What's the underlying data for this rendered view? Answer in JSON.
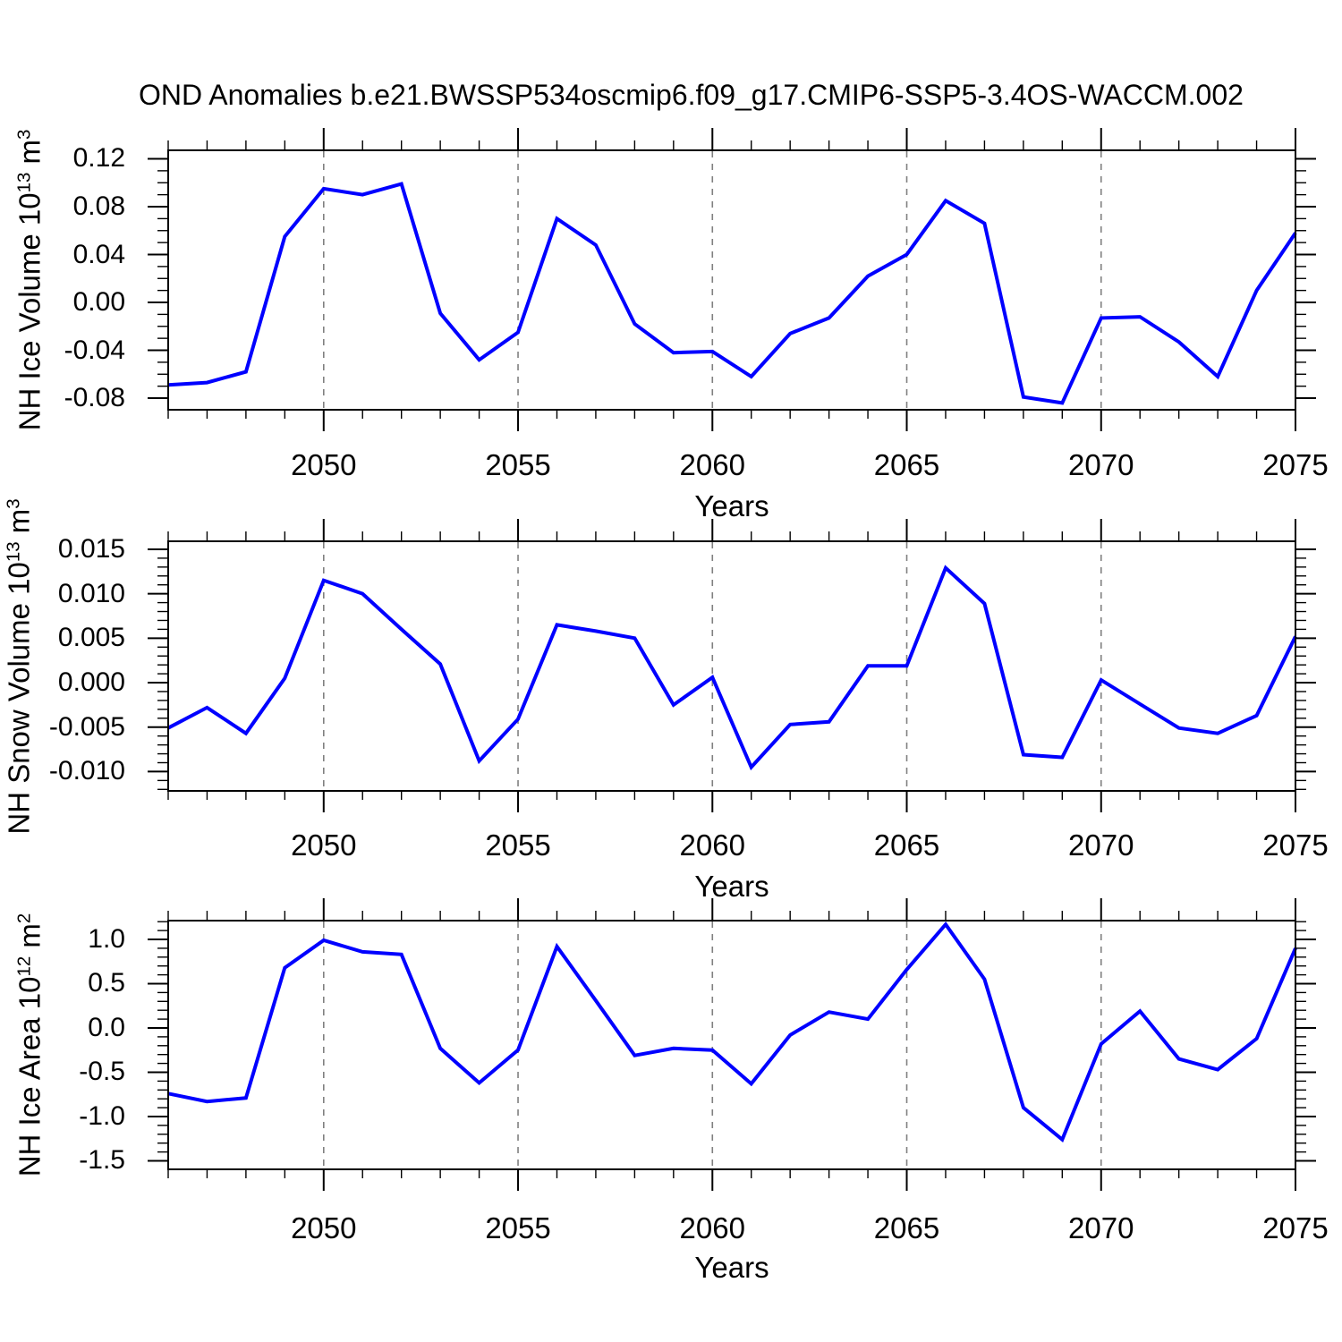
{
  "title": "OND Anomalies b.e21.BWSSP534oscmip6.f09_g17.CMIP6-SSP5-3.4OS-WACCM.002",
  "colors": {
    "line": "#0000ff",
    "axis": "#000000",
    "grid": "#808080",
    "text": "#000000",
    "background": "#ffffff"
  },
  "chart_data": [
    {
      "type": "line",
      "name": "nh-ice-volume",
      "ylabel_text": "NH Ice Volume 10^13 m^3",
      "ylabel_parts": [
        {
          "t": "NH Ice Volume 10"
        },
        {
          "t": "13",
          "sup": true
        },
        {
          "t": " m"
        },
        {
          "t": "3",
          "sup": true
        }
      ],
      "xlabel": "Years",
      "x": [
        2046,
        2047,
        2048,
        2049,
        2050,
        2051,
        2052,
        2053,
        2054,
        2055,
        2056,
        2057,
        2058,
        2059,
        2060,
        2061,
        2062,
        2063,
        2064,
        2065,
        2066,
        2067,
        2068,
        2069,
        2070,
        2071,
        2072,
        2073,
        2074,
        2075
      ],
      "values": [
        -0.069,
        -0.067,
        -0.058,
        0.055,
        0.095,
        0.09,
        0.099,
        -0.009,
        -0.048,
        -0.025,
        0.07,
        0.048,
        -0.018,
        -0.042,
        -0.041,
        -0.062,
        -0.026,
        -0.013,
        0.022,
        0.04,
        0.085,
        0.066,
        -0.079,
        -0.084,
        -0.013,
        -0.012,
        -0.033,
        -0.062,
        0.01,
        0.058
      ],
      "xlim": [
        2046,
        2075
      ],
      "ylim": [
        -0.0897,
        0.1271
      ],
      "xticks": [
        {
          "v": 2050,
          "label": "2050"
        },
        {
          "v": 2055,
          "label": "2055"
        },
        {
          "v": 2060,
          "label": "2060"
        },
        {
          "v": 2065,
          "label": "2065"
        },
        {
          "v": 2070,
          "label": "2070"
        },
        {
          "v": 2075,
          "label": "2075"
        }
      ],
      "yticks": [
        {
          "v": 0.12,
          "label": "0.12"
        },
        {
          "v": 0.08,
          "label": "0.08"
        },
        {
          "v": 0.04,
          "label": "0.04"
        },
        {
          "v": 0.0,
          "label": "0.00"
        },
        {
          "v": -0.04,
          "label": "-0.04"
        },
        {
          "v": -0.08,
          "label": "-0.08"
        }
      ],
      "ytick_minor_step": 0.01,
      "xtick_minor_step": 1,
      "grid_x": [
        2050,
        2055,
        2060,
        2065,
        2070
      ],
      "grid_style": "dashed"
    },
    {
      "type": "line",
      "name": "nh-snow-volume",
      "ylabel_text": "NH Snow Volume 10^13 m^3",
      "ylabel_parts": [
        {
          "t": "NH Snow Volume 10"
        },
        {
          "t": "13",
          "sup": true
        },
        {
          "t": " m"
        },
        {
          "t": "3",
          "sup": true
        }
      ],
      "xlabel": "Years",
      "x": [
        2046,
        2047,
        2048,
        2049,
        2050,
        2051,
        2052,
        2053,
        2054,
        2055,
        2056,
        2057,
        2058,
        2059,
        2060,
        2061,
        2062,
        2063,
        2064,
        2065,
        2066,
        2067,
        2068,
        2069,
        2070,
        2071,
        2072,
        2073,
        2074,
        2075
      ],
      "values": [
        -0.0051,
        -0.0028,
        -0.0057,
        0.0005,
        0.0115,
        0.01,
        0.006,
        0.0021,
        -0.0088,
        -0.0041,
        0.0065,
        0.0058,
        0.005,
        -0.0025,
        0.0006,
        -0.0095,
        -0.0047,
        -0.0044,
        0.0019,
        0.0019,
        0.0129,
        0.0089,
        -0.0081,
        -0.0084,
        0.0003,
        -0.0024,
        -0.0051,
        -0.0057,
        -0.0037,
        0.0052
      ],
      "xlim": [
        2046,
        2075
      ],
      "ylim": [
        -0.01217,
        0.0159
      ],
      "xticks": [
        {
          "v": 2050,
          "label": "2050"
        },
        {
          "v": 2055,
          "label": "2055"
        },
        {
          "v": 2060,
          "label": "2060"
        },
        {
          "v": 2065,
          "label": "2065"
        },
        {
          "v": 2070,
          "label": "2070"
        },
        {
          "v": 2075,
          "label": "2075"
        }
      ],
      "yticks": [
        {
          "v": 0.015,
          "label": "0.015"
        },
        {
          "v": 0.01,
          "label": "0.010"
        },
        {
          "v": 0.005,
          "label": "0.005"
        },
        {
          "v": 0.0,
          "label": "0.000"
        },
        {
          "v": -0.005,
          "label": "-0.005"
        },
        {
          "v": -0.01,
          "label": "-0.010"
        }
      ],
      "ytick_minor_step": 0.001,
      "xtick_minor_step": 1,
      "grid_x": [
        2050,
        2055,
        2060,
        2065,
        2070
      ],
      "grid_style": "dashed"
    },
    {
      "type": "line",
      "name": "nh-ice-area",
      "ylabel_text": "NH Ice Area 10^12 m^2",
      "ylabel_parts": [
        {
          "t": "NH Ice Area 10"
        },
        {
          "t": "12",
          "sup": true
        },
        {
          "t": " m"
        },
        {
          "t": "2",
          "sup": true
        }
      ],
      "xlabel": "Years",
      "x": [
        2046,
        2047,
        2048,
        2049,
        2050,
        2051,
        2052,
        2053,
        2054,
        2055,
        2056,
        2057,
        2058,
        2059,
        2060,
        2061,
        2062,
        2063,
        2064,
        2065,
        2066,
        2067,
        2068,
        2069,
        2070,
        2071,
        2072,
        2073,
        2074,
        2075
      ],
      "values": [
        -0.74,
        -0.83,
        -0.79,
        0.68,
        0.99,
        0.86,
        0.83,
        -0.23,
        -0.62,
        -0.25,
        0.92,
        0.31,
        -0.31,
        -0.23,
        -0.25,
        -0.63,
        -0.08,
        0.18,
        0.1,
        0.66,
        1.17,
        0.55,
        -0.9,
        -1.26,
        -0.18,
        0.19,
        -0.35,
        -0.47,
        -0.12,
        0.9
      ],
      "xlim": [
        2046,
        2075
      ],
      "ylim": [
        -1.596,
        1.2121
      ],
      "xticks": [
        {
          "v": 2050,
          "label": "2050"
        },
        {
          "v": 2055,
          "label": "2055"
        },
        {
          "v": 2060,
          "label": "2060"
        },
        {
          "v": 2065,
          "label": "2065"
        },
        {
          "v": 2070,
          "label": "2070"
        },
        {
          "v": 2075,
          "label": "2075"
        }
      ],
      "yticks": [
        {
          "v": 1.0,
          "label": "1.0"
        },
        {
          "v": 0.5,
          "label": "0.5"
        },
        {
          "v": 0.0,
          "label": "0.0"
        },
        {
          "v": -0.5,
          "label": "-0.5"
        },
        {
          "v": -1.0,
          "label": "-1.0"
        },
        {
          "v": -1.5,
          "label": "-1.5"
        }
      ],
      "ytick_minor_step": 0.1,
      "xtick_minor_step": 1,
      "grid_x": [
        2050,
        2055,
        2060,
        2065,
        2070
      ],
      "grid_style": "dashed"
    }
  ]
}
